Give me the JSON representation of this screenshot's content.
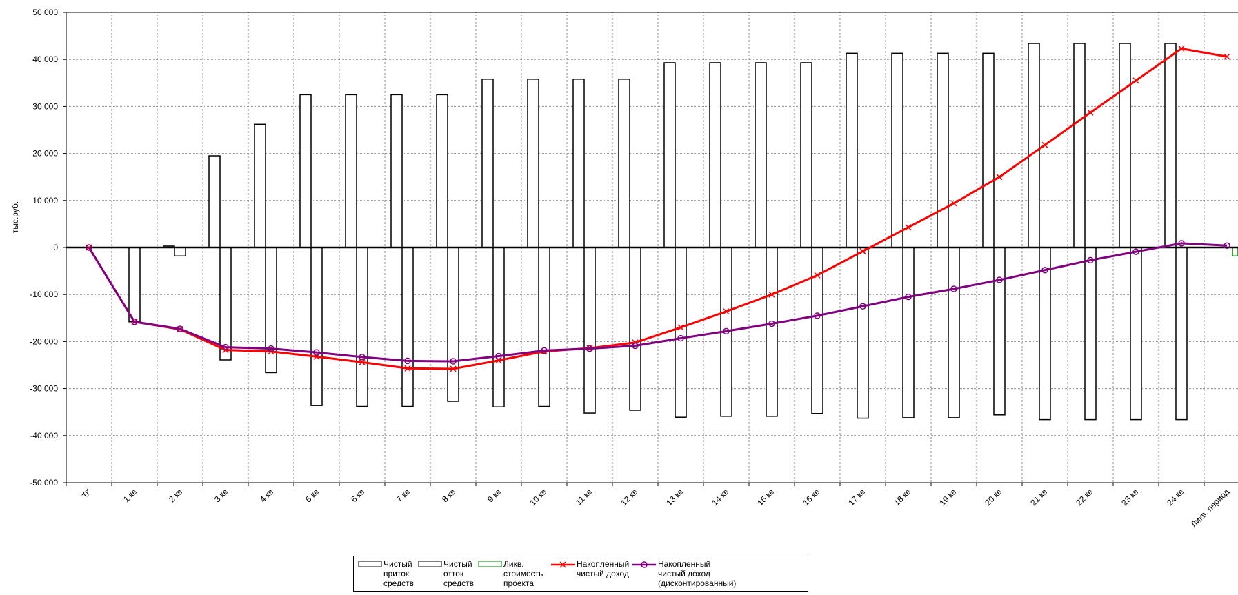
{
  "chart_data": {
    "type": "bar",
    "ylabel": "тыс.руб.",
    "ylim": [
      -50000,
      50000
    ],
    "yticks": [
      50000,
      40000,
      30000,
      20000,
      10000,
      0,
      -10000,
      -20000,
      -30000,
      -40000,
      -50000
    ],
    "ytick_labels": [
      "50 000",
      "40 000",
      "30 000",
      "20 000",
      "10 000",
      "0",
      "-10 000",
      "-20 000",
      "-30 000",
      "-40 000",
      "-50 000"
    ],
    "grid": true,
    "legend_position": "bottom-center",
    "categories": [
      "\"0\"",
      "1 кв",
      "2 кв",
      "3 кв",
      "4 кв",
      "5 кв",
      "6 кв",
      "7 кв",
      "8 кв",
      "9 кв",
      "10 кв",
      "11 кв",
      "12 кв",
      "13 кв",
      "14 кв",
      "15 кв",
      "16 кв",
      "17 кв",
      "18 кв",
      "19 кв",
      "20 кв",
      "21 кв",
      "22 кв",
      "23 кв",
      "24 кв",
      "Ликв. период"
    ],
    "series": [
      {
        "name": "Чистый приток средств",
        "kind": "bar",
        "color": "#ffffff",
        "stroke": "#000000",
        "values": [
          0,
          0,
          300,
          19500,
          26200,
          32500,
          32500,
          32500,
          32500,
          35800,
          35800,
          35800,
          35800,
          39300,
          39300,
          39300,
          39300,
          41300,
          41300,
          41300,
          41300,
          43400,
          43400,
          43400,
          43400,
          0
        ]
      },
      {
        "name": "Чистый отток средств",
        "kind": "bar",
        "color": "#ffffff",
        "stroke": "#000000",
        "values": [
          0,
          -15800,
          -1800,
          -23900,
          -26600,
          -33600,
          -33800,
          -33800,
          -32700,
          -33900,
          -33800,
          -35200,
          -34600,
          -36100,
          -35900,
          -35900,
          -35300,
          -36300,
          -36200,
          -36200,
          -35600,
          -36600,
          -36600,
          -36600,
          -36600,
          0
        ]
      },
      {
        "name": "Ликв. стоимость проекта",
        "kind": "bar",
        "color": "#ffffff",
        "stroke": "#008000",
        "values": [
          0,
          0,
          0,
          0,
          0,
          0,
          0,
          0,
          0,
          0,
          0,
          0,
          0,
          0,
          0,
          0,
          0,
          0,
          0,
          0,
          0,
          0,
          0,
          0,
          0,
          -1800
        ]
      },
      {
        "name": "Накопленный чистый доход",
        "kind": "line",
        "marker": "x",
        "color": "#ff0000",
        "values": [
          0,
          -15800,
          -17400,
          -21800,
          -22100,
          -23200,
          -24400,
          -25700,
          -25800,
          -24000,
          -22100,
          -21400,
          -20200,
          -17000,
          -13600,
          -10000,
          -5900,
          -800,
          4300,
          9400,
          15000,
          21800,
          28700,
          35500,
          42300,
          40600
        ]
      },
      {
        "name": "Накопленный чистый доход (дисконтированный)",
        "kind": "line",
        "marker": "o",
        "color": "#800080",
        "values": [
          0,
          -15800,
          -17300,
          -21200,
          -21500,
          -22300,
          -23300,
          -24100,
          -24200,
          -23100,
          -21900,
          -21500,
          -20900,
          -19300,
          -17800,
          -16200,
          -14500,
          -12500,
          -10500,
          -8800,
          -6900,
          -4800,
          -2700,
          -900,
          900,
          400
        ]
      }
    ]
  },
  "legend": {
    "items": [
      {
        "label": "Чистый\nприток\nсредств",
        "swatch": "bar",
        "color": "#000000"
      },
      {
        "label": "Чистый\nотток\nсредств",
        "swatch": "bar",
        "color": "#000000"
      },
      {
        "label": "Ликв.\nстоимость\nпроекта",
        "swatch": "bar",
        "color": "#008000"
      },
      {
        "label": "Накопленный\nчистый доход",
        "swatch": "line-x",
        "color": "#ff0000"
      },
      {
        "label": "Накопленный\nчистый доход\n(дисконтированный)",
        "swatch": "line-o",
        "color": "#800080"
      }
    ]
  }
}
